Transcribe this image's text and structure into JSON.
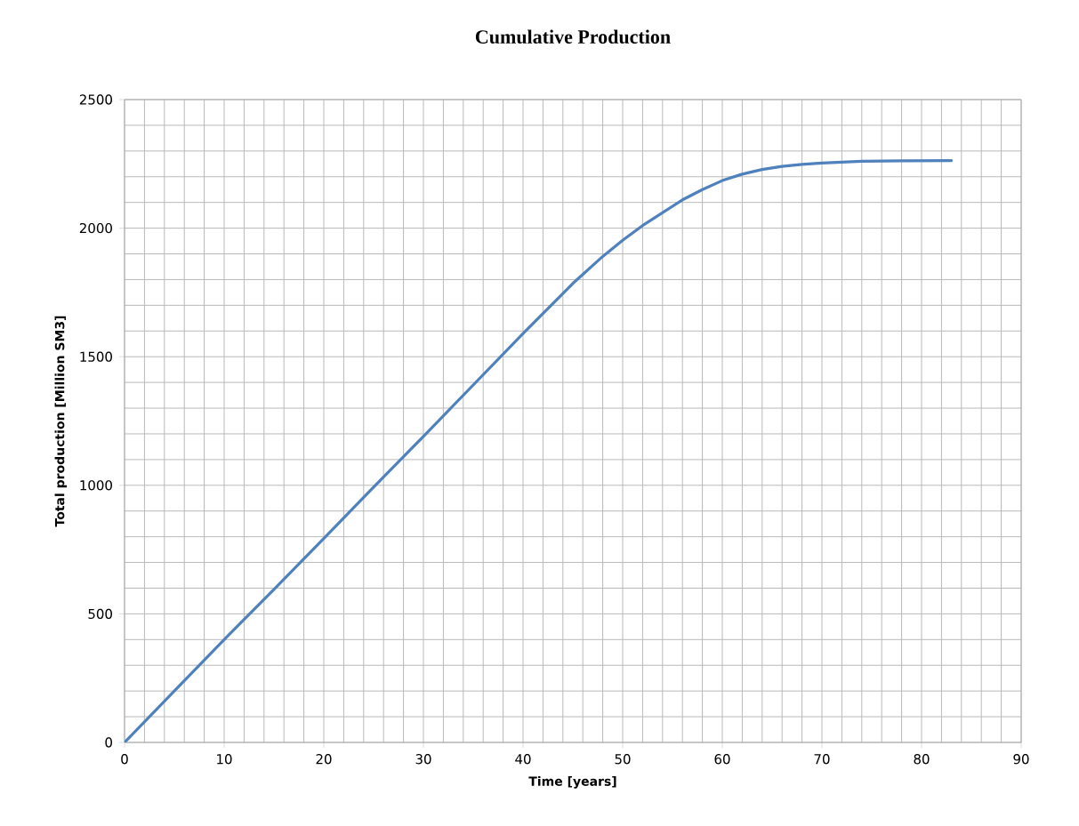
{
  "chart_data": {
    "type": "line",
    "title": "Cumulative Production",
    "xlabel": "Time [years]",
    "ylabel": "Total production [Million SM3]",
    "x": [
      0,
      5,
      10,
      15,
      20,
      25,
      30,
      35,
      40,
      45,
      48,
      50,
      52,
      54,
      56,
      58,
      60,
      62,
      64,
      66,
      68,
      70,
      74,
      78,
      83
    ],
    "series": [
      {
        "color": "#4f81bd",
        "values": [
          0,
          200,
          400,
          595,
          793,
          993,
          1190,
          1390,
          1590,
          1785,
          1890,
          1953,
          2010,
          2060,
          2110,
          2150,
          2185,
          2210,
          2228,
          2240,
          2248,
          2253,
          2260,
          2262,
          2263
        ]
      }
    ],
    "xlim": [
      0,
      90
    ],
    "ylim": [
      0,
      2500
    ],
    "xticks": [
      0,
      10,
      20,
      30,
      40,
      50,
      60,
      70,
      80,
      90
    ],
    "yticks": [
      0,
      500,
      1000,
      1500,
      2000,
      2500
    ],
    "grid": true,
    "marker": "none",
    "line_style": "solid"
  }
}
